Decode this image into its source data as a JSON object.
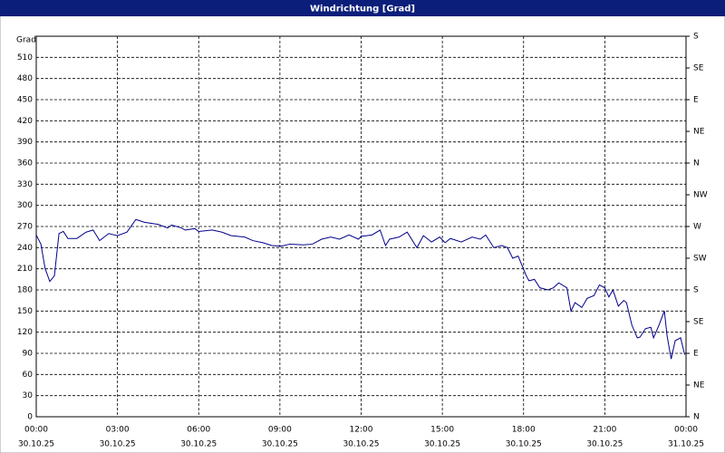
{
  "chart_data": {
    "type": "line",
    "title": "Windrichtung [Grad]",
    "ylabel": "Grad",
    "ylim": [
      0,
      540
    ],
    "yticks": [
      0,
      30,
      60,
      90,
      120,
      150,
      180,
      210,
      240,
      270,
      300,
      330,
      360,
      390,
      420,
      450,
      480,
      510
    ],
    "y2lim": [
      0,
      540
    ],
    "y2ticks": [
      {
        "value": 0,
        "label": "N"
      },
      {
        "value": 45,
        "label": "NE"
      },
      {
        "value": 90,
        "label": "E"
      },
      {
        "value": 135,
        "label": "SE"
      },
      {
        "value": 180,
        "label": "S"
      },
      {
        "value": 225,
        "label": "SW"
      },
      {
        "value": 270,
        "label": "W"
      },
      {
        "value": 315,
        "label": "NW"
      },
      {
        "value": 360,
        "label": "N"
      },
      {
        "value": 405,
        "label": "NE"
      },
      {
        "value": 450,
        "label": "E"
      },
      {
        "value": 495,
        "label": "SE"
      },
      {
        "value": 540,
        "label": "S"
      }
    ],
    "xlim": [
      0,
      24
    ],
    "xticks": [
      {
        "value": 0,
        "label": "00:00"
      },
      {
        "value": 3,
        "label": "03:00"
      },
      {
        "value": 6,
        "label": "06:00"
      },
      {
        "value": 9,
        "label": "09:00"
      },
      {
        "value": 12,
        "label": "12:00"
      },
      {
        "value": 15,
        "label": "15:00"
      },
      {
        "value": 18,
        "label": "18:00"
      },
      {
        "value": 21,
        "label": "21:00"
      },
      {
        "value": 24,
        "label": "00:00"
      }
    ],
    "xtick_dates": [
      "30.10.25",
      "30.10.25",
      "30.10.25",
      "30.10.25",
      "30.10.25",
      "30.10.25",
      "30.10.25",
      "30.10.25",
      "31.10.25"
    ],
    "grid": true,
    "series": [
      {
        "color": "#00008b",
        "x": [
          0,
          0.17,
          0.33,
          0.5,
          0.67,
          0.84,
          1.0,
          1.17,
          1.5,
          1.84,
          2.1,
          2.34,
          2.68,
          3.0,
          3.35,
          3.68,
          4.0,
          4.5,
          4.85,
          5.0,
          5.36,
          5.5,
          5.86,
          6.0,
          6.5,
          6.86,
          7.2,
          7.7,
          8.0,
          8.37,
          8.7,
          9.04,
          9.37,
          9.87,
          10.2,
          10.54,
          10.88,
          11.2,
          11.55,
          11.9,
          12.0,
          12.4,
          12.7,
          12.9,
          13.05,
          13.4,
          13.7,
          14.06,
          14.3,
          14.6,
          14.9,
          15.1,
          15.3,
          15.7,
          16.1,
          16.4,
          16.6,
          16.9,
          17.2,
          17.4,
          17.6,
          17.8,
          18.1,
          18.2,
          18.4,
          18.6,
          18.9,
          19.1,
          19.3,
          19.6,
          19.75,
          19.9,
          20.15,
          20.35,
          20.6,
          20.8,
          21.0,
          21.15,
          21.3,
          21.5,
          21.7,
          21.8,
          22.0,
          22.2,
          22.3,
          22.5,
          22.7,
          22.8,
          23.0,
          23.2,
          23.3,
          23.45,
          23.6,
          23.8,
          23.95
        ],
        "values": [
          258,
          245,
          210,
          192,
          200,
          260,
          263,
          253,
          253,
          262,
          265,
          250,
          260,
          257,
          262,
          280,
          276,
          273,
          268,
          272,
          268,
          265,
          267,
          263,
          265,
          262,
          257,
          255,
          250,
          247,
          243,
          242,
          245,
          244,
          245,
          252,
          255,
          252,
          258,
          252,
          256,
          258,
          265,
          243,
          252,
          255,
          262,
          240,
          257,
          248,
          255,
          247,
          253,
          248,
          255,
          252,
          258,
          240,
          243,
          240,
          225,
          228,
          200,
          193,
          195,
          183,
          180,
          183,
          190,
          183,
          150,
          162,
          155,
          168,
          172,
          187,
          183,
          170,
          180,
          157,
          165,
          162,
          130,
          112,
          113,
          125,
          127,
          112,
          130,
          150,
          115,
          82,
          108,
          112,
          88
        ]
      }
    ]
  }
}
